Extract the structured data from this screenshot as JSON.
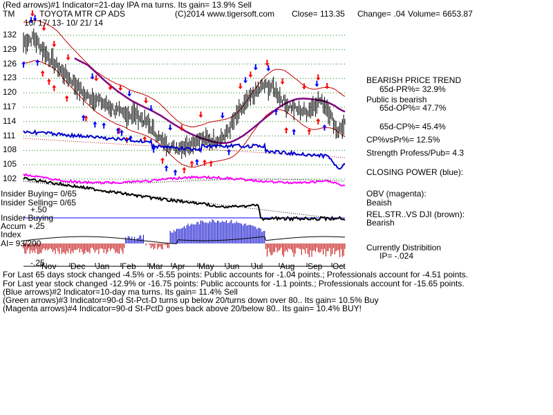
{
  "header": {
    "line1": "(Red arrows)#1 Indicator=21-day IPA ma turns.  Its gain= 13.9% Sell",
    "ticker": "TM",
    "company": "TOYOTA MTR CP ADS",
    "copyright": "(C)2014 www.tigersoft.com",
    "close": "Close=  113.35",
    "change": "Change= .04",
    "volume": "Volume= 6653.87",
    "date_range": "10/ 17/ 13- 10/ 21/ 14"
  },
  "right_panel": {
    "trend": "BEARISH PRICE TREND",
    "pr": "65d-PR%=  32.9%",
    "public": "Public is bearish",
    "op": "65d-OP%=  47.7%",
    "cp": "65d-CP%=  45.4%",
    "cpvspr": "CP%vsPr%=  12.5%",
    "strength": "Strength Profess/Pub= 4.3",
    "closing_power": "CLOSING POWER (blue):",
    "obv": "OBV (magenta):",
    "obv_state": "Beaish",
    "relstr": "REL.STR..VS DJI (brown):",
    "relstr_state": "Bearish",
    "distribution": "Currently Distribition",
    "ip": "IP= -.024"
  },
  "left_panel": {
    "insider_buying": "Insider Buying= 0/65",
    "insider_selling": "Insider Selling= 0/65",
    "plus50": "+.50",
    "insider_buying2": "Insider Buying",
    "accum": "Accum  +.25",
    "index": "Index",
    "ai": "AI= 93/200",
    "minus25": "-.25"
  },
  "footer": {
    "line1": "For Last 65 days stock changed -4.5% or -5.55 points:  Public accounts for -1.04 points.;  Professionals account for -4.51 points.",
    "line2": "For Last year stock changed -12.9% or -16.75 points:  Public accounts for -1.1 points.;  Professionals account for -15.65 points.",
    "line3": "(Blue arrows)#2 Indicator=10-day ma turns.  Its gain= 11.4% Sell",
    "line4": "(Green arrows)#3 Indicator=90-d St-Pct-D turns up below 20/turns down over 80.. Its gain= 10.5% Buy",
    "line5": "(Magenta arrows)#4 Indicator=90-d St-PctD goes back above 20/below 80.. Its gain= 10.4% BUY!"
  },
  "colors": {
    "price": "#000000",
    "band": "#c00000",
    "ma": "#800080",
    "closing_power": "#0000cc",
    "obv": "#ff00ff",
    "accum_pos": "#0000cc",
    "accum_neg": "#c00000",
    "grid": "#008000",
    "arrow_red": "#ff0000",
    "arrow_blue": "#0000ff"
  },
  "chart_data": {
    "type": "line",
    "y_ticks": [
      132,
      129,
      126,
      123,
      120,
      117,
      114,
      111,
      108,
      105,
      102
    ],
    "ylim": [
      100.5,
      133.5
    ],
    "months": [
      "Nov",
      "Dec",
      "Jan",
      "Feb",
      "Mar",
      "Apr",
      "May",
      "Jun",
      "Jul",
      "Aug",
      "Sep",
      "Oct"
    ],
    "n_days": 253,
    "price_points": [
      [
        0,
        130.5
      ],
      [
        8,
        131.5
      ],
      [
        18,
        128
      ],
      [
        28,
        125
      ],
      [
        38,
        122.5
      ],
      [
        48,
        119.5
      ],
      [
        58,
        118.5
      ],
      [
        68,
        117
      ],
      [
        78,
        115.5
      ],
      [
        88,
        115.5
      ],
      [
        98,
        113.5
      ],
      [
        108,
        110
      ],
      [
        118,
        108.5
      ],
      [
        128,
        109
      ],
      [
        138,
        110.5
      ],
      [
        148,
        110
      ],
      [
        158,
        111
      ],
      [
        168,
        115.5
      ],
      [
        178,
        119
      ],
      [
        188,
        121.5
      ],
      [
        196,
        121
      ],
      [
        206,
        117.5
      ],
      [
        214,
        116.5
      ],
      [
        222,
        116
      ],
      [
        232,
        118.5
      ],
      [
        238,
        117
      ],
      [
        246,
        112
      ],
      [
        252,
        113.35
      ]
    ],
    "series": [
      {
        "name": "CLOSING POWER (blue)",
        "values": "closing_power"
      },
      {
        "name": "OBV (magenta)",
        "values": "obv"
      },
      {
        "name": "REL.STR..VS DJI (brown)",
        "values": "relstr"
      }
    ],
    "red_arrows_down": [
      7,
      16,
      24,
      35,
      57,
      68,
      76,
      96,
      124,
      139,
      170,
      178,
      191,
      203,
      220,
      231,
      238
    ],
    "red_arrows_up": [
      15,
      20,
      24,
      34,
      49,
      75,
      81,
      95,
      109,
      126,
      132,
      142,
      147,
      206,
      224,
      231
    ],
    "blue_arrows_down": [
      6,
      9,
      54,
      83,
      100,
      115,
      156,
      174,
      182,
      192,
      230
    ],
    "blue_arrows_up": [
      0,
      11,
      47,
      56,
      63,
      74,
      77,
      84,
      102,
      112,
      119,
      136,
      161,
      198,
      212,
      236
    ]
  }
}
